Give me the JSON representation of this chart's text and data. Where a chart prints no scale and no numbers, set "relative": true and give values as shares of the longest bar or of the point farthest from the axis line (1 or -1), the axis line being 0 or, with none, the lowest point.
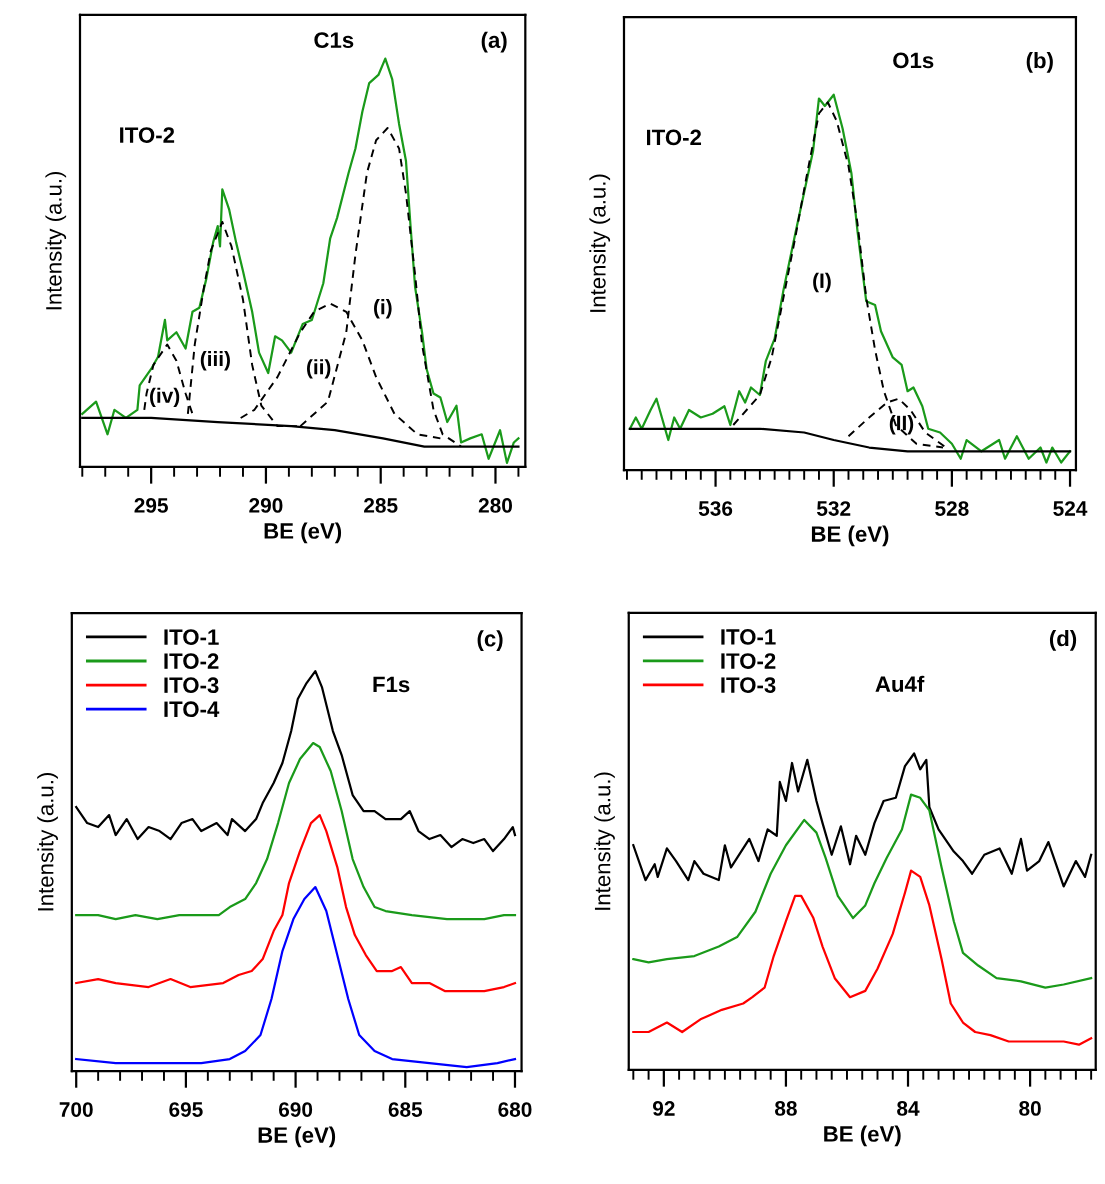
{
  "chart_data": [
    {
      "type": "line",
      "relative": true,
      "xlabel": "BE (eV)",
      "ylabel": "Intensity (a.u.)",
      "line_style": "solid",
      "xlim": [
        298.1,
        278.7
      ],
      "xticks": [
        {
          "value": 298,
          "label": null
        },
        {
          "value": 297,
          "label": null
        },
        {
          "value": 296,
          "label": null
        },
        295,
        {
          "value": 294,
          "label": null
        },
        {
          "value": 293,
          "label": null
        },
        {
          "value": 292,
          "label": null
        },
        {
          "value": 291,
          "label": null
        },
        290,
        {
          "value": 289,
          "label": null
        },
        {
          "value": 288,
          "label": null
        },
        {
          "value": 287,
          "label": null
        },
        {
          "value": 286,
          "label": null
        },
        285,
        {
          "value": 284,
          "label": null
        },
        {
          "value": 283,
          "label": null
        },
        {
          "value": 282,
          "label": null
        },
        {
          "value": 281,
          "label": null
        },
        280,
        {
          "value": 279,
          "label": null
        }
      ],
      "annotations": [
        "C1s",
        "(a)",
        "ITO-2",
        "(i)",
        "(ii)",
        "(iii)",
        "(iv)"
      ],
      "series": [
        {
          "color": "#1a9a1a",
          "x": [
            298.0,
            297.4,
            296.9,
            296.6,
            296.1,
            295.6,
            295.5,
            295.0,
            294.7,
            294.4,
            294.3,
            293.9,
            293.5,
            293.2,
            292.9,
            292.6,
            292.3,
            292.1,
            292.0,
            291.9,
            291.6,
            291.3,
            291.0,
            290.6,
            290.3,
            289.9,
            289.6,
            289.3,
            288.9,
            288.4,
            288.0,
            287.5,
            287.2,
            286.9,
            286.4,
            286.1,
            285.8,
            285.5,
            285.1,
            284.8,
            284.5,
            284.2,
            283.9,
            283.7,
            283.5,
            283.2,
            283.0,
            282.7,
            282.4,
            282.1,
            281.7,
            281.5,
            281.1,
            280.6,
            280.3,
            279.8,
            279.5,
            279.2,
            279.0
          ],
          "values": [
            0.13,
            0.16,
            0.08,
            0.14,
            0.12,
            0.14,
            0.2,
            0.24,
            0.27,
            0.36,
            0.31,
            0.33,
            0.29,
            0.38,
            0.39,
            0.46,
            0.55,
            0.59,
            0.54,
            0.68,
            0.63,
            0.55,
            0.48,
            0.38,
            0.28,
            0.23,
            0.32,
            0.31,
            0.28,
            0.35,
            0.36,
            0.45,
            0.56,
            0.61,
            0.72,
            0.78,
            0.87,
            0.94,
            0.96,
            1.0,
            0.95,
            0.84,
            0.75,
            0.59,
            0.44,
            0.33,
            0.24,
            0.18,
            0.17,
            0.11,
            0.15,
            0.06,
            0.07,
            0.08,
            0.02,
            0.09,
            0.01,
            0.06,
            0.07
          ]
        },
        {
          "color": "#000000",
          "x": [
            298.0,
            295.0,
            292.1,
            288.9,
            287.0,
            284.9,
            283.1,
            279.0
          ],
          "values": [
            0.12,
            0.12,
            0.11,
            0.1,
            0.09,
            0.07,
            0.05,
            0.05
          ]
        },
        {
          "color": "#000000",
          "line_style": "dashed",
          "x": [
            288.5,
            287.3,
            286.5,
            286.1,
            285.6,
            285.2,
            284.7,
            284.2,
            283.9,
            283.5,
            283.2,
            282.7,
            282.3,
            281.5
          ],
          "values": [
            0.1,
            0.16,
            0.33,
            0.52,
            0.72,
            0.8,
            0.83,
            0.78,
            0.67,
            0.47,
            0.3,
            0.14,
            0.08,
            0.05
          ]
        },
        {
          "color": "#000000",
          "line_style": "dashed",
          "x": [
            291.1,
            290.5,
            289.5,
            288.5,
            287.9,
            287.2,
            286.5,
            285.8,
            285.2,
            284.4,
            283.4,
            282.4
          ],
          "values": [
            0.12,
            0.14,
            0.22,
            0.33,
            0.38,
            0.4,
            0.38,
            0.31,
            0.22,
            0.13,
            0.08,
            0.07
          ]
        },
        {
          "color": "#000000",
          "line_style": "dashed",
          "x": [
            293.4,
            293.1,
            292.7,
            292.4,
            291.9,
            291.5,
            291.0,
            290.6,
            290.2,
            289.5,
            288.5
          ],
          "values": [
            0.13,
            0.3,
            0.44,
            0.53,
            0.6,
            0.54,
            0.41,
            0.25,
            0.15,
            0.1,
            0.1
          ]
        },
        {
          "color": "#000000",
          "line_style": "dashed",
          "x": [
            295.3,
            295.2,
            294.9,
            294.3,
            293.9,
            293.5,
            293.2
          ],
          "values": [
            0.14,
            0.18,
            0.25,
            0.3,
            0.26,
            0.18,
            0.13
          ]
        }
      ]
    },
    {
      "type": "line",
      "relative": true,
      "xlabel": "BE (eV)",
      "ylabel": "Intensity (a.u.)",
      "line_style": "solid",
      "xlim": [
        539.1,
        523.8
      ],
      "xticks": [
        {
          "value": 539,
          "label": null
        },
        {
          "value": 538.5,
          "label": null
        },
        {
          "value": 538,
          "label": null
        },
        {
          "value": 537.5,
          "label": null
        },
        {
          "value": 537,
          "label": null
        },
        {
          "value": 536.5,
          "label": null
        },
        536,
        {
          "value": 535.5,
          "label": null
        },
        {
          "value": 535,
          "label": null
        },
        {
          "value": 534.5,
          "label": null
        },
        {
          "value": 534,
          "label": null
        },
        {
          "value": 533.5,
          "label": null
        },
        {
          "value": 533,
          "label": null
        },
        {
          "value": 532.5,
          "label": null
        },
        532,
        {
          "value": 531.5,
          "label": null
        },
        {
          "value": 531,
          "label": null
        },
        {
          "value": 530.5,
          "label": null
        },
        {
          "value": 530,
          "label": null
        },
        {
          "value": 529.5,
          "label": null
        },
        {
          "value": 529,
          "label": null
        },
        {
          "value": 528.5,
          "label": null
        },
        528,
        {
          "value": 527.5,
          "label": null
        },
        {
          "value": 527,
          "label": null
        },
        {
          "value": 526.5,
          "label": null
        },
        {
          "value": 526,
          "label": null
        },
        {
          "value": 525.5,
          "label": null
        },
        {
          "value": 525,
          "label": null
        },
        {
          "value": 524.5,
          "label": null
        },
        524
      ],
      "annotations": [
        "O1s",
        "(b)",
        "ITO-2",
        "(I)",
        "(II)"
      ],
      "series": [
        {
          "color": "#1a9a1a",
          "x": [
            538.9,
            538.7,
            538.5,
            538.2,
            538.0,
            537.6,
            537.4,
            537.2,
            536.9,
            536.5,
            536.1,
            535.7,
            535.5,
            535.2,
            535.0,
            534.8,
            534.5,
            534.3,
            534.0,
            533.7,
            533.3,
            533.0,
            532.7,
            532.5,
            532.3,
            532.0,
            531.7,
            531.4,
            531.2,
            530.9,
            530.6,
            530.4,
            530.0,
            529.7,
            529.5,
            529.3,
            529.0,
            528.8,
            528.4,
            528.0,
            527.7,
            527.5,
            527.0,
            526.4,
            526.2,
            525.8,
            525.4,
            525.0,
            524.8,
            524.6,
            524.3,
            524.0
          ],
          "values": [
            0.11,
            0.14,
            0.11,
            0.16,
            0.19,
            0.08,
            0.14,
            0.11,
            0.16,
            0.14,
            0.15,
            0.17,
            0.12,
            0.21,
            0.18,
            0.22,
            0.2,
            0.29,
            0.35,
            0.48,
            0.63,
            0.74,
            0.85,
            0.99,
            0.97,
            1.0,
            0.91,
            0.79,
            0.64,
            0.45,
            0.44,
            0.37,
            0.3,
            0.28,
            0.21,
            0.22,
            0.17,
            0.11,
            0.1,
            0.07,
            0.03,
            0.08,
            0.05,
            0.08,
            0.03,
            0.09,
            0.03,
            0.06,
            0.02,
            0.06,
            0.02,
            0.05
          ]
        },
        {
          "color": "#000000",
          "x": [
            538.9,
            534.5,
            533.0,
            532.0,
            530.8,
            529.5,
            524.0
          ],
          "values": [
            0.11,
            0.11,
            0.1,
            0.08,
            0.06,
            0.05,
            0.05
          ]
        },
        {
          "color": "#000000",
          "line_style": "dashed",
          "x": [
            535.4,
            534.5,
            534.1,
            533.7,
            533.3,
            532.9,
            532.5,
            532.2,
            531.9,
            531.5,
            531.2,
            530.9,
            530.6,
            530.3,
            529.9,
            529.2,
            528.3
          ],
          "values": [
            0.12,
            0.2,
            0.3,
            0.46,
            0.62,
            0.79,
            0.95,
            0.98,
            0.93,
            0.81,
            0.66,
            0.46,
            0.32,
            0.21,
            0.12,
            0.07,
            0.06
          ]
        },
        {
          "color": "#000000",
          "line_style": "dashed",
          "x": [
            531.5,
            530.8,
            530.2,
            529.8,
            529.4,
            528.9,
            528.2
          ],
          "values": [
            0.09,
            0.14,
            0.18,
            0.19,
            0.16,
            0.1,
            0.06
          ]
        }
      ]
    },
    {
      "type": "line",
      "relative": true,
      "xlabel": "BE (eV)",
      "ylabel": "Intensity (a.u.)",
      "line_style": "solid",
      "legend": "top left",
      "xlim": [
        700.2,
        679.7
      ],
      "xticks": [
        700,
        {
          "value": 699,
          "label": null
        },
        {
          "value": 698,
          "label": null
        },
        {
          "value": 697,
          "label": null
        },
        {
          "value": 696,
          "label": null
        },
        695,
        {
          "value": 694,
          "label": null
        },
        {
          "value": 693,
          "label": null
        },
        {
          "value": 692,
          "label": null
        },
        {
          "value": 691,
          "label": null
        },
        690,
        {
          "value": 689,
          "label": null
        },
        {
          "value": 688,
          "label": null
        },
        {
          "value": 687,
          "label": null
        },
        {
          "value": 686,
          "label": null
        },
        685,
        {
          "value": 684,
          "label": null
        },
        {
          "value": 683,
          "label": null
        },
        {
          "value": 682,
          "label": null
        },
        {
          "value": 681,
          "label": null
        },
        680
      ],
      "annotations": [
        "(c)",
        "F1s"
      ],
      "series": [
        {
          "name": "ITO-1",
          "color": "#000000",
          "x": [
            700,
            699.5,
            699.0,
            698.5,
            698.2,
            697.7,
            697.2,
            696.7,
            696.2,
            695.7,
            695.2,
            694.7,
            694.3,
            693.6,
            693.1,
            692.9,
            692.3,
            691.8,
            691.5,
            691.0,
            690.6,
            690.2,
            689.9,
            689.5,
            689.1,
            688.8,
            688.3,
            687.9,
            687.4,
            686.9,
            686.4,
            685.9,
            685.2,
            684.8,
            684.4,
            683.9,
            683.4,
            682.9,
            682.4,
            681.9,
            681.4,
            681.0,
            680.5,
            680.1,
            680.0
          ],
          "values": [
            0.66,
            0.62,
            0.61,
            0.64,
            0.59,
            0.63,
            0.58,
            0.61,
            0.6,
            0.58,
            0.62,
            0.63,
            0.6,
            0.62,
            0.59,
            0.63,
            0.6,
            0.63,
            0.67,
            0.72,
            0.77,
            0.85,
            0.93,
            0.97,
            1.0,
            0.96,
            0.85,
            0.79,
            0.69,
            0.65,
            0.65,
            0.63,
            0.63,
            0.65,
            0.6,
            0.58,
            0.59,
            0.56,
            0.58,
            0.57,
            0.58,
            0.55,
            0.58,
            0.61,
            0.59
          ]
        },
        {
          "name": "ITO-2",
          "color": "#1a9a1a",
          "x": [
            700,
            699.0,
            698.2,
            697.3,
            696.3,
            695.3,
            694.3,
            693.5,
            693.0,
            692.3,
            691.8,
            691.3,
            690.8,
            690.3,
            689.8,
            689.2,
            688.9,
            688.4,
            687.9,
            687.4,
            686.9,
            686.4,
            685.9,
            684.7,
            683.1,
            681.4,
            680.5,
            680.0
          ],
          "values": [
            0.39,
            0.39,
            0.38,
            0.39,
            0.38,
            0.39,
            0.39,
            0.39,
            0.41,
            0.43,
            0.47,
            0.53,
            0.62,
            0.72,
            0.78,
            0.82,
            0.81,
            0.75,
            0.65,
            0.53,
            0.46,
            0.41,
            0.4,
            0.39,
            0.38,
            0.38,
            0.39,
            0.39
          ]
        },
        {
          "name": "ITO-3",
          "color": "#ff0000",
          "x": [
            700,
            699.0,
            698.2,
            696.7,
            695.7,
            694.8,
            693.3,
            692.6,
            692.0,
            691.5,
            691.0,
            690.6,
            690.3,
            689.8,
            689.3,
            688.9,
            688.6,
            688.1,
            687.7,
            687.3,
            686.8,
            686.3,
            685.6,
            685.2,
            684.7,
            683.9,
            683.2,
            682.2,
            681.4,
            680.5,
            680.0
          ],
          "values": [
            0.22,
            0.23,
            0.22,
            0.21,
            0.23,
            0.21,
            0.22,
            0.24,
            0.25,
            0.28,
            0.35,
            0.39,
            0.47,
            0.55,
            0.62,
            0.64,
            0.6,
            0.51,
            0.41,
            0.34,
            0.29,
            0.25,
            0.25,
            0.26,
            0.22,
            0.22,
            0.2,
            0.2,
            0.2,
            0.21,
            0.22
          ]
        },
        {
          "name": "ITO-4",
          "color": "#0000ff",
          "x": [
            700,
            698.2,
            696.3,
            694.3,
            693.0,
            692.3,
            691.6,
            691.1,
            690.6,
            690.1,
            689.6,
            689.1,
            688.6,
            688.1,
            687.6,
            687.1,
            686.4,
            685.6,
            683.9,
            682.2,
            680.8,
            680.0
          ],
          "values": [
            0.03,
            0.02,
            0.02,
            0.02,
            0.03,
            0.05,
            0.09,
            0.18,
            0.3,
            0.38,
            0.43,
            0.46,
            0.4,
            0.29,
            0.18,
            0.09,
            0.05,
            0.03,
            0.02,
            0.01,
            0.02,
            0.03
          ]
        }
      ]
    },
    {
      "type": "line",
      "relative": true,
      "xlabel": "BE (eV)",
      "ylabel": "Intensity (a.u.)",
      "line_style": "solid",
      "legend": "top left",
      "xlim": [
        93.15,
        77.85
      ],
      "xticks": [
        {
          "value": 93,
          "label": null
        },
        {
          "value": 92.5,
          "label": null
        },
        92,
        {
          "value": 91.5,
          "label": null
        },
        {
          "value": 91,
          "label": null
        },
        {
          "value": 90.5,
          "label": null
        },
        {
          "value": 90,
          "label": null
        },
        {
          "value": 89.5,
          "label": null
        },
        {
          "value": 89,
          "label": null
        },
        {
          "value": 88.5,
          "label": null
        },
        88,
        {
          "value": 87.5,
          "label": null
        },
        {
          "value": 87,
          "label": null
        },
        {
          "value": 86.5,
          "label": null
        },
        {
          "value": 86,
          "label": null
        },
        {
          "value": 85.5,
          "label": null
        },
        {
          "value": 85,
          "label": null
        },
        {
          "value": 84.5,
          "label": null
        },
        84,
        {
          "value": 83.5,
          "label": null
        },
        {
          "value": 83,
          "label": null
        },
        {
          "value": 82.5,
          "label": null
        },
        {
          "value": 82,
          "label": null
        },
        {
          "value": 81.5,
          "label": null
        },
        {
          "value": 81,
          "label": null
        },
        {
          "value": 80.5,
          "label": null
        },
        80,
        {
          "value": 79.5,
          "label": null
        },
        {
          "value": 79,
          "label": null
        },
        {
          "value": 78.5,
          "label": null
        },
        {
          "value": 78,
          "label": null
        }
      ],
      "annotations": [
        "(d)",
        "Au4f"
      ],
      "series": [
        {
          "name": "ITO-1",
          "color": "#000000",
          "x": [
            93.0,
            92.6,
            92.3,
            92.2,
            91.9,
            91.6,
            91.2,
            91.0,
            90.7,
            90.2,
            90.0,
            89.8,
            89.2,
            88.9,
            88.6,
            88.3,
            88.2,
            88.0,
            87.8,
            87.6,
            87.3,
            87.0,
            86.8,
            86.5,
            86.2,
            85.9,
            85.7,
            85.4,
            85.1,
            84.8,
            84.4,
            84.1,
            83.8,
            83.6,
            83.4,
            83.3,
            83.0,
            82.5,
            82.2,
            81.9,
            81.5,
            81.0,
            80.6,
            80.3,
            80.1,
            79.7,
            79.4,
            78.9,
            78.5,
            78.2,
            78.0
          ],
          "values": [
            0.71,
            0.6,
            0.65,
            0.61,
            0.7,
            0.66,
            0.6,
            0.66,
            0.62,
            0.6,
            0.71,
            0.64,
            0.73,
            0.66,
            0.76,
            0.74,
            0.91,
            0.85,
            0.97,
            0.88,
            0.98,
            0.85,
            0.78,
            0.68,
            0.77,
            0.65,
            0.74,
            0.68,
            0.78,
            0.85,
            0.86,
            0.96,
            1.0,
            0.95,
            0.98,
            0.83,
            0.76,
            0.69,
            0.66,
            0.62,
            0.68,
            0.7,
            0.62,
            0.73,
            0.63,
            0.66,
            0.72,
            0.58,
            0.66,
            0.61,
            0.68
          ]
        },
        {
          "name": "ITO-2",
          "color": "#1a9a1a",
          "x": [
            93.0,
            92.5,
            91.9,
            91.0,
            90.2,
            89.6,
            89.0,
            88.5,
            88.0,
            87.4,
            87.0,
            86.7,
            86.3,
            85.8,
            85.4,
            85.1,
            84.7,
            84.2,
            83.9,
            83.6,
            83.3,
            82.9,
            82.5,
            82.2,
            81.7,
            81.1,
            80.3,
            79.5,
            78.9,
            78.0
          ],
          "values": [
            0.35,
            0.34,
            0.35,
            0.36,
            0.39,
            0.42,
            0.5,
            0.62,
            0.71,
            0.79,
            0.75,
            0.67,
            0.55,
            0.48,
            0.52,
            0.59,
            0.67,
            0.76,
            0.87,
            0.86,
            0.82,
            0.64,
            0.47,
            0.37,
            0.33,
            0.29,
            0.28,
            0.26,
            0.27,
            0.29
          ]
        },
        {
          "name": "ITO-3",
          "color": "#ff0000",
          "x": [
            93.0,
            92.5,
            91.9,
            91.4,
            90.8,
            90.1,
            89.4,
            89.1,
            88.7,
            88.4,
            88.0,
            87.7,
            87.5,
            87.1,
            86.8,
            86.4,
            85.9,
            85.4,
            85.0,
            84.5,
            84.1,
            83.9,
            83.6,
            83.3,
            82.9,
            82.6,
            82.2,
            81.8,
            81.3,
            80.7,
            80.1,
            79.4,
            78.9,
            78.4,
            78.0
          ],
          "values": [
            0.12,
            0.12,
            0.15,
            0.12,
            0.16,
            0.19,
            0.21,
            0.23,
            0.26,
            0.36,
            0.47,
            0.55,
            0.55,
            0.48,
            0.39,
            0.29,
            0.23,
            0.25,
            0.32,
            0.43,
            0.56,
            0.63,
            0.61,
            0.52,
            0.35,
            0.21,
            0.15,
            0.12,
            0.11,
            0.09,
            0.09,
            0.09,
            0.09,
            0.08,
            0.1
          ]
        }
      ]
    }
  ]
}
